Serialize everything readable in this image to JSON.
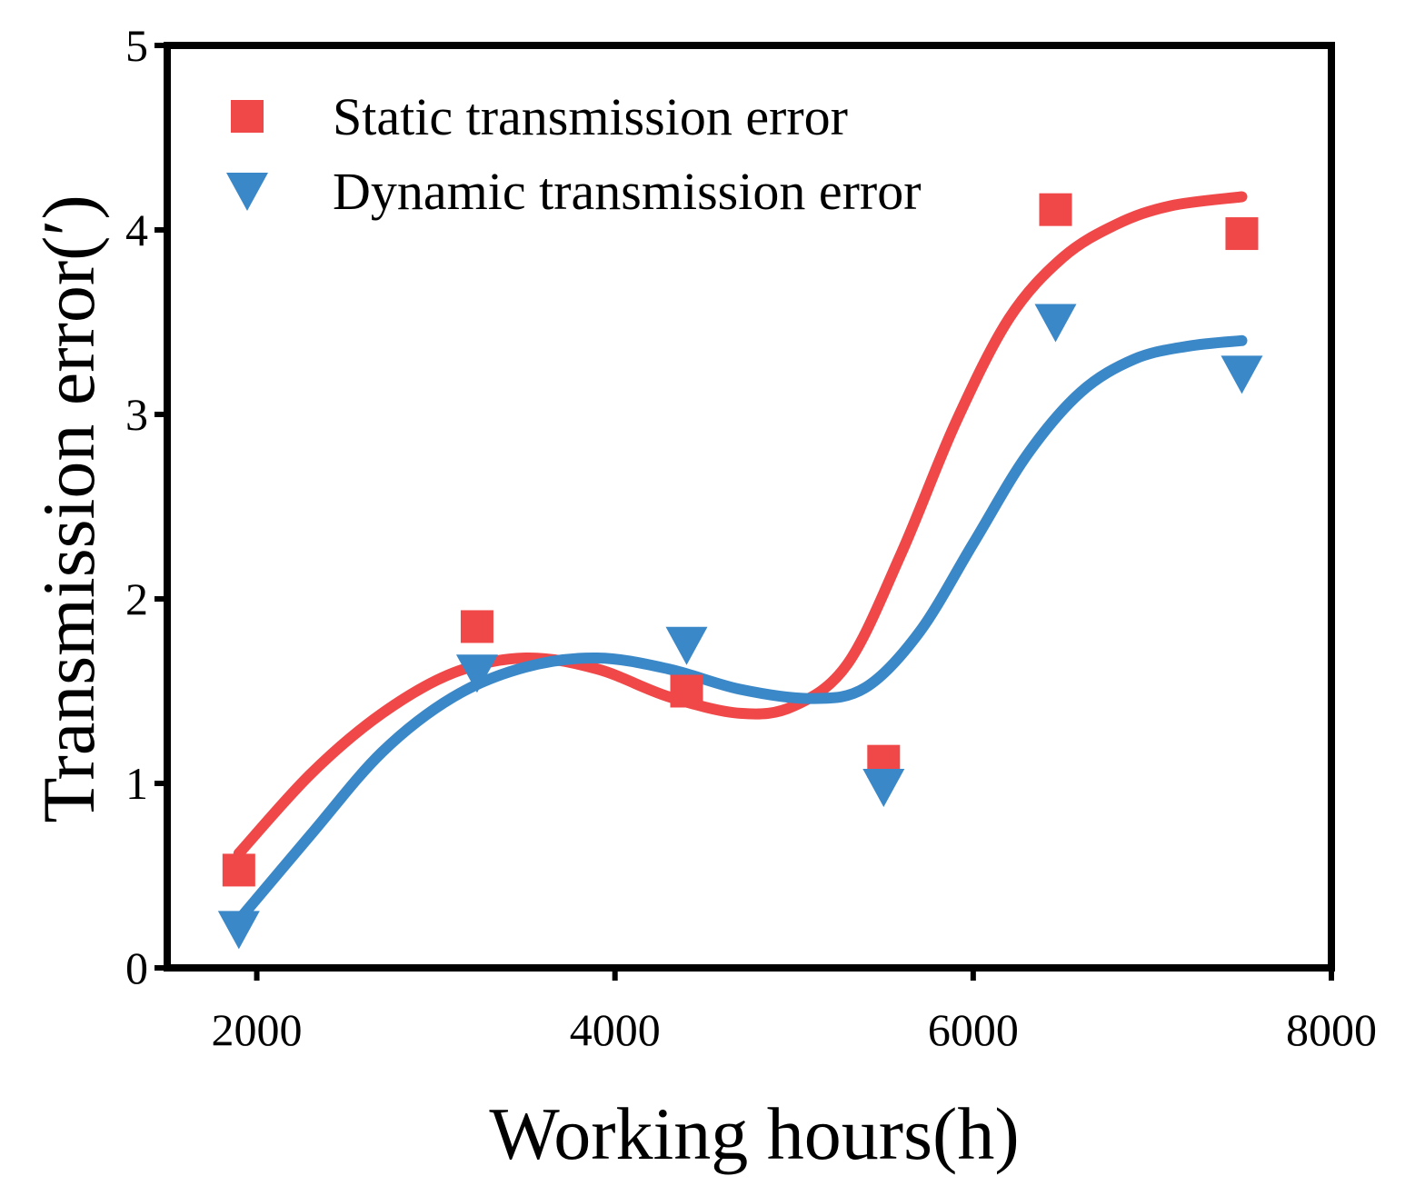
{
  "chart_data": {
    "type": "scatter",
    "xlabel": "Working hours(h)",
    "ylabel": "Transmission error(′)",
    "xlim": [
      1500,
      8000
    ],
    "ylim": [
      0,
      5
    ],
    "xticks": [
      2000,
      4000,
      6000,
      8000
    ],
    "yticks": [
      0,
      1,
      2,
      3,
      4,
      5
    ],
    "grid": false,
    "legend_position": "top-left",
    "series": [
      {
        "name": "Static transmission error",
        "marker": "square",
        "color": "#f04848",
        "x": [
          1900,
          3230,
          4400,
          5500,
          6460,
          7500
        ],
        "y": [
          0.53,
          1.85,
          1.5,
          1.12,
          4.11,
          3.98
        ],
        "fit": {
          "x": [
            1900,
            2300,
            2700,
            3100,
            3500,
            3900,
            4300,
            4700,
            5000,
            5300,
            5600,
            5900,
            6200,
            6500,
            6800,
            7100,
            7500
          ],
          "y": [
            0.62,
            1.05,
            1.38,
            1.6,
            1.68,
            1.62,
            1.47,
            1.38,
            1.42,
            1.65,
            2.25,
            2.95,
            3.52,
            3.85,
            4.03,
            4.13,
            4.18
          ]
        }
      },
      {
        "name": "Dynamic transmission error",
        "marker": "triangle-down",
        "color": "#3b88c8",
        "x": [
          1900,
          3230,
          4400,
          5500,
          6460,
          7500
        ],
        "y": [
          0.21,
          1.6,
          1.75,
          0.98,
          3.5,
          3.22
        ],
        "fit": {
          "x": [
            1900,
            2300,
            2700,
            3100,
            3500,
            3900,
            4300,
            4700,
            5100,
            5400,
            5700,
            6000,
            6300,
            6600,
            6900,
            7200,
            7500
          ],
          "y": [
            0.26,
            0.72,
            1.17,
            1.47,
            1.63,
            1.68,
            1.62,
            1.51,
            1.46,
            1.52,
            1.82,
            2.3,
            2.78,
            3.12,
            3.3,
            3.37,
            3.4
          ]
        }
      }
    ]
  }
}
